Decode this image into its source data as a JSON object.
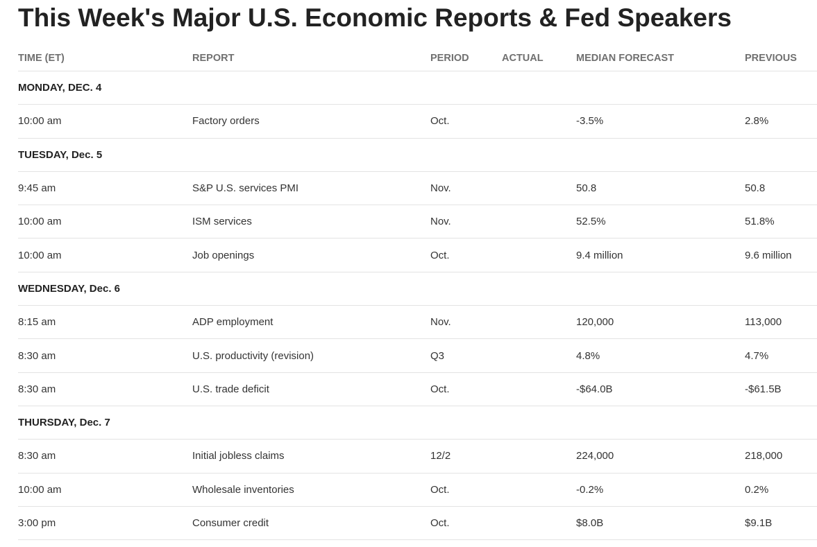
{
  "title": "This Week's Major U.S. Economic Reports & Fed Speakers",
  "columns": {
    "time": "TIME (ET)",
    "report": "REPORT",
    "period": "PERIOD",
    "actual": "ACTUAL",
    "forecast": "MEDIAN FORECAST",
    "previous": "PREVIOUS"
  },
  "days": [
    {
      "label": "MONDAY, DEC. 4",
      "rows": [
        {
          "time": "10:00 am",
          "report": "Factory orders",
          "period": "Oct.",
          "actual": "",
          "forecast": "-3.5%",
          "previous": "2.8%"
        }
      ]
    },
    {
      "label": "TUESDAY, Dec. 5",
      "rows": [
        {
          "time": "9:45 am",
          "report": "S&P U.S. services PMI",
          "period": "Nov.",
          "actual": "",
          "forecast": "50.8",
          "previous": "50.8"
        },
        {
          "time": "10:00 am",
          "report": "ISM services",
          "period": "Nov.",
          "actual": "",
          "forecast": "52.5%",
          "previous": "51.8%"
        },
        {
          "time": "10:00 am",
          "report": "Job openings",
          "period": "Oct.",
          "actual": "",
          "forecast": "9.4 million",
          "previous": "9.6 million"
        }
      ]
    },
    {
      "label": "WEDNESDAY, Dec. 6",
      "rows": [
        {
          "time": "8:15 am",
          "report": "ADP employment",
          "period": "Nov.",
          "actual": "",
          "forecast": "120,000",
          "previous": "113,000"
        },
        {
          "time": "8:30 am",
          "report": "U.S. productivity (revision)",
          "period": "Q3",
          "actual": "",
          "forecast": "4.8%",
          "previous": "4.7%"
        },
        {
          "time": "8:30 am",
          "report": "U.S. trade deficit",
          "period": "Oct.",
          "actual": "",
          "forecast": "-$64.0B",
          "previous": "-$61.5B"
        }
      ]
    },
    {
      "label": "THURSDAY, Dec. 7",
      "rows": [
        {
          "time": "8:30 am",
          "report": "Initial jobless claims",
          "period": "12/2",
          "actual": "",
          "forecast": "224,000",
          "previous": "218,000"
        },
        {
          "time": "10:00 am",
          "report": "Wholesale inventories",
          "period": "Oct.",
          "actual": "",
          "forecast": "-0.2%",
          "previous": "0.2%"
        },
        {
          "time": "3:00 pm",
          "report": "Consumer credit",
          "period": "Oct.",
          "actual": "",
          "forecast": "$8.0B",
          "previous": "$9.1B"
        }
      ]
    }
  ]
}
